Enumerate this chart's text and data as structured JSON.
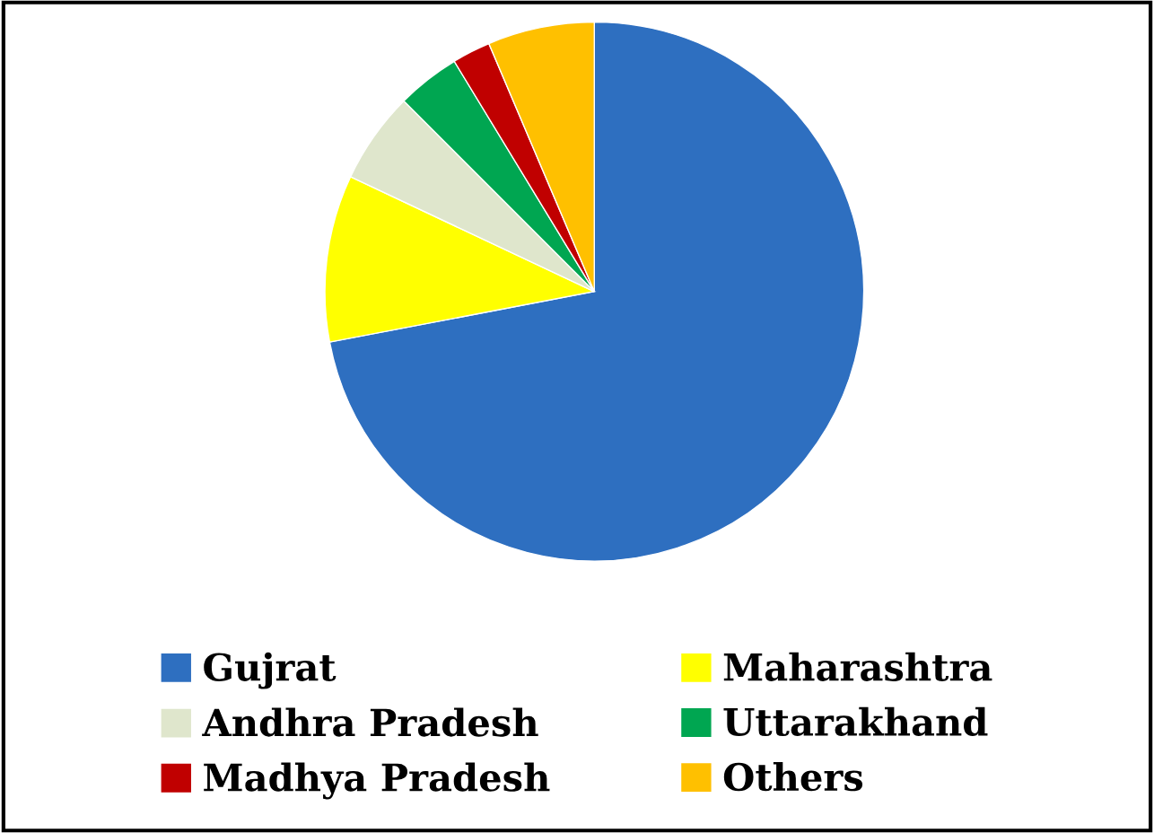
{
  "chart_data": {
    "type": "pie",
    "categories": [
      "Gujrat",
      "Maharashtra",
      "Andhra Pradesh",
      "Uttarakhand",
      "Madhya Pradesh",
      "Others"
    ],
    "values": [
      72,
      10,
      5.5,
      3.8,
      2.3,
      6.4
    ],
    "colors": [
      "#2e6fc0",
      "#ffff00",
      "#dfe6cc",
      "#00a651",
      "#c00000",
      "#ffc000"
    ],
    "legend": "bottom"
  }
}
